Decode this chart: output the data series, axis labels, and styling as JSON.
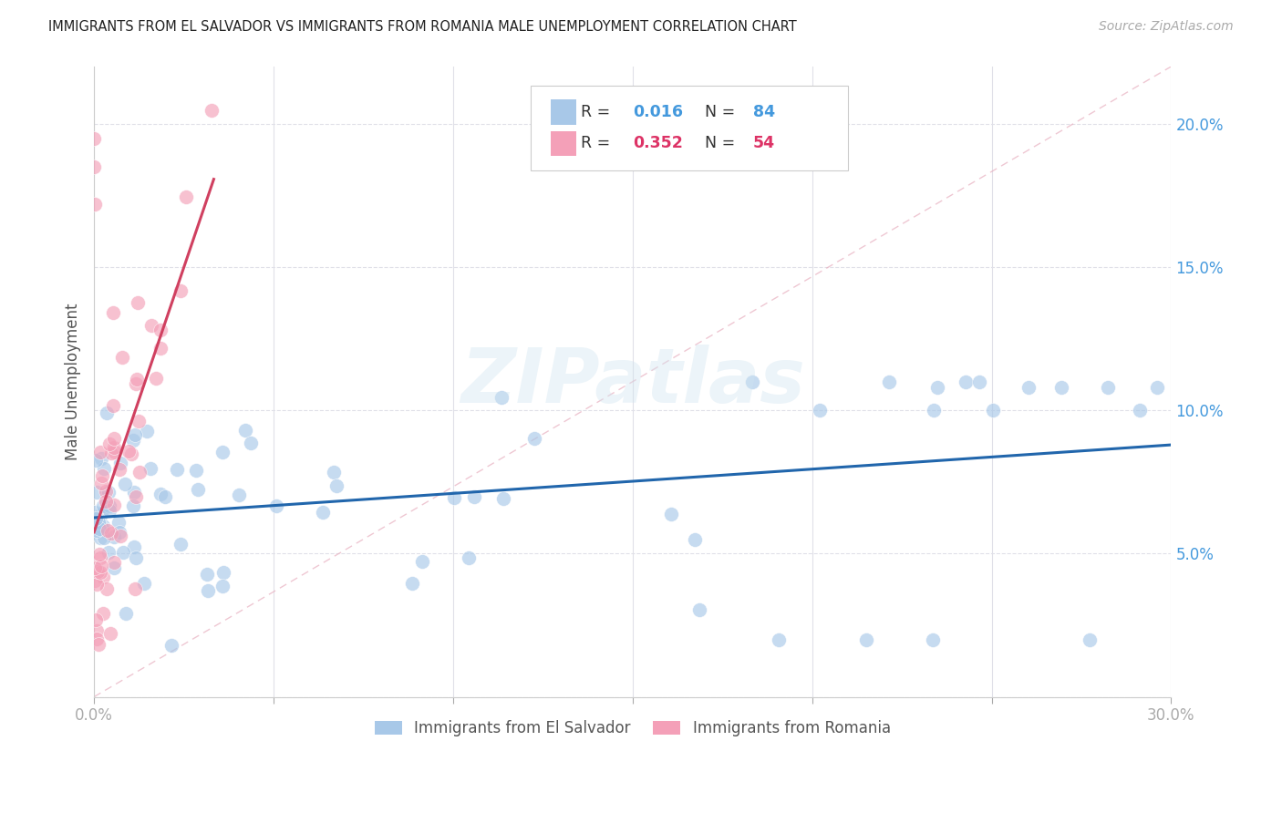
{
  "title": "IMMIGRANTS FROM EL SALVADOR VS IMMIGRANTS FROM ROMANIA MALE UNEMPLOYMENT CORRELATION CHART",
  "source": "Source: ZipAtlas.com",
  "ylabel": "Male Unemployment",
  "watermark": "ZIPatlas",
  "color_blue": "#a8c8e8",
  "color_pink": "#f4a0b8",
  "color_blue_dark": "#2166ac",
  "color_pink_dark": "#d04060",
  "color_blue_text": "#4499dd",
  "color_pink_text": "#dd3366",
  "xmin": 0.0,
  "xmax": 0.3,
  "ymin": 0.0,
  "ymax": 0.22,
  "es_seed": 42,
  "ro_seed": 99
}
